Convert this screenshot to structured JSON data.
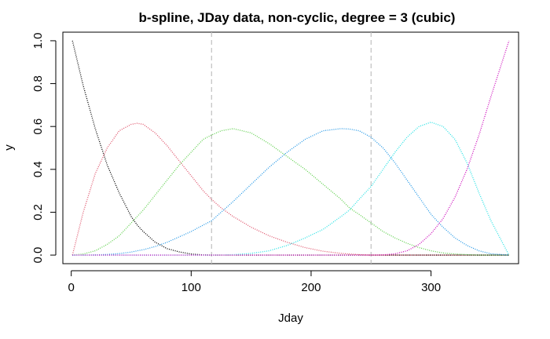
{
  "chart_data": {
    "type": "line",
    "title": "b-spline, JDay data, non-cyclic, degree = 3 (cubic)",
    "xlabel": "Jday",
    "ylabel": "y",
    "xlim": [
      -7,
      373
    ],
    "ylim": [
      -0.04,
      1.04
    ],
    "x_ticks": [
      0,
      100,
      200,
      300
    ],
    "y_ticks": [
      0.0,
      0.2,
      0.4,
      0.6,
      0.8,
      1.0
    ],
    "x_tick_labels": [
      "0",
      "100",
      "200",
      "300"
    ],
    "y_tick_labels": [
      "0.0",
      "0.2",
      "0.4",
      "0.6",
      "0.8",
      "1.0"
    ],
    "knots": [
      1,
      117,
      250,
      365
    ],
    "interior_knots": [
      117,
      250
    ],
    "grid": false,
    "line_style": "dotted",
    "x": [
      1,
      10,
      20,
      30,
      40,
      50,
      55,
      60,
      70,
      80,
      90,
      100,
      110,
      117,
      125,
      135,
      150,
      165,
      180,
      195,
      210,
      225,
      232,
      240,
      250,
      260,
      270,
      280,
      290,
      300,
      310,
      320,
      330,
      340,
      350,
      365
    ],
    "series": [
      {
        "color": "#000000",
        "values": [
          1.0,
          0.79,
          0.59,
          0.42,
          0.29,
          0.18,
          0.14,
          0.11,
          0.06,
          0.03,
          0.015,
          0.005,
          0.001,
          0.0,
          0.0,
          0.0,
          0.0,
          0.0,
          0.0,
          0.0,
          0.0,
          0.0,
          0.0,
          0.0,
          0.0,
          0.0,
          0.0,
          0.0,
          0.0,
          0.0,
          0.0,
          0.0,
          0.0,
          0.0,
          0.0,
          0.0
        ]
      },
      {
        "color": "#DF536B",
        "values": [
          0.0,
          0.2,
          0.38,
          0.5,
          0.58,
          0.61,
          0.615,
          0.61,
          0.57,
          0.51,
          0.44,
          0.37,
          0.3,
          0.26,
          0.22,
          0.18,
          0.13,
          0.09,
          0.06,
          0.035,
          0.018,
          0.008,
          0.005,
          0.002,
          0.0,
          0.0,
          0.0,
          0.0,
          0.0,
          0.0,
          0.0,
          0.0,
          0.0,
          0.0,
          0.0,
          0.0
        ]
      },
      {
        "color": "#61D04F",
        "values": [
          0.0,
          0.005,
          0.02,
          0.05,
          0.09,
          0.15,
          0.18,
          0.21,
          0.28,
          0.35,
          0.42,
          0.48,
          0.54,
          0.56,
          0.58,
          0.59,
          0.57,
          0.52,
          0.46,
          0.4,
          0.33,
          0.26,
          0.22,
          0.19,
          0.15,
          0.11,
          0.08,
          0.055,
          0.035,
          0.02,
          0.01,
          0.005,
          0.002,
          0.0,
          0.0,
          0.0
        ]
      },
      {
        "color": "#2297E6",
        "values": [
          0.0,
          0.0,
          0.001,
          0.003,
          0.007,
          0.014,
          0.02,
          0.025,
          0.04,
          0.06,
          0.085,
          0.11,
          0.14,
          0.16,
          0.2,
          0.25,
          0.33,
          0.41,
          0.48,
          0.54,
          0.58,
          0.59,
          0.588,
          0.58,
          0.55,
          0.5,
          0.43,
          0.35,
          0.27,
          0.19,
          0.13,
          0.08,
          0.045,
          0.02,
          0.006,
          0.0
        ]
      },
      {
        "color": "#28E2E5",
        "values": [
          0.0,
          0.0,
          0.0,
          0.0,
          0.0,
          0.0,
          0.0,
          0.0,
          0.0,
          0.0,
          0.0,
          0.0,
          0.0,
          0.0,
          0.0003,
          0.002,
          0.008,
          0.02,
          0.045,
          0.08,
          0.12,
          0.18,
          0.21,
          0.26,
          0.32,
          0.4,
          0.48,
          0.55,
          0.6,
          0.62,
          0.6,
          0.54,
          0.43,
          0.29,
          0.16,
          0.0
        ]
      },
      {
        "color": "#CD0BBC",
        "values": [
          0.0,
          0.0,
          0.0,
          0.0,
          0.0,
          0.0,
          0.0,
          0.0,
          0.0,
          0.0,
          0.0,
          0.0,
          0.0,
          0.0,
          0.0,
          0.0,
          0.0,
          0.0,
          0.0,
          0.0,
          0.0,
          0.0,
          0.0,
          0.0,
          0.0,
          0.001,
          0.006,
          0.02,
          0.05,
          0.1,
          0.17,
          0.27,
          0.4,
          0.56,
          0.74,
          1.0
        ]
      }
    ]
  }
}
